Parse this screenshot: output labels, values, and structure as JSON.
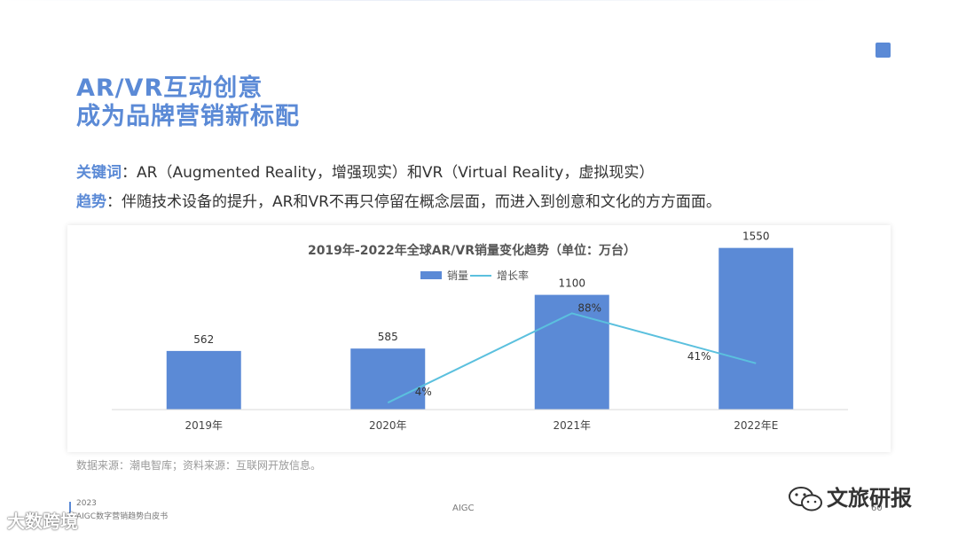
{
  "title_line1": "AR/VR互动创意",
  "title_line2": "成为品牌营销新标配",
  "keywords": {
    "label": "关键词",
    "text": "：AR（Augmented Reality，增强现实）和VR（Virtual Reality，虚拟现实）"
  },
  "trend": {
    "label": "趋势",
    "text": "：伴随技术设备的提升，AR和VR不再只停留在概念层面，而进入到创意和文化的方方面面。"
  },
  "chart_data": {
    "type": "bar",
    "title": "2019年-2022年全球AR/VR销量变化趋势（单位：万台）",
    "categories": [
      "2019年",
      "2020年",
      "2021年",
      "2022年E"
    ],
    "series": [
      {
        "name": "销量",
        "type": "bar",
        "values": [
          562,
          585,
          1100,
          1550
        ],
        "labels": [
          "562",
          "585",
          "1100",
          "1550"
        ],
        "color": "#5b8ad6"
      },
      {
        "name": "增长率",
        "type": "line",
        "values": [
          null,
          4,
          88,
          41
        ],
        "labels": [
          "",
          "4%",
          "88%",
          "41%"
        ],
        "color": "#5bc0de"
      }
    ],
    "legend_position": "top-center",
    "grid": false
  },
  "source": "数据来源：潮电智库；资料来源：互联网开放信息。",
  "footer": {
    "year": "2023",
    "doc": "AIGC数字营销趋势白皮书",
    "center": "AIGC",
    "page": "60"
  },
  "watermark_left": "大数跨境",
  "watermark_right": "文旅研报"
}
